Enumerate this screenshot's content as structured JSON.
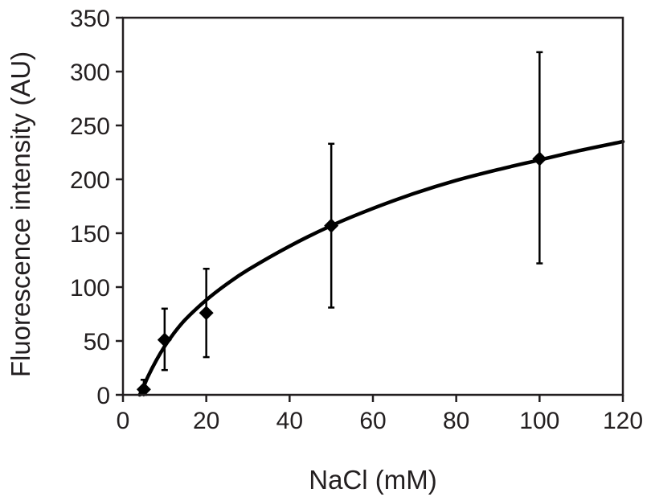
{
  "chart_data": {
    "type": "scatter",
    "title": "",
    "xlabel": "NaCl (mM)",
    "ylabel": "Fluorescence intensity (AU)",
    "xlim": [
      0,
      120
    ],
    "ylim": [
      0,
      350
    ],
    "x_ticks": [
      0,
      20,
      40,
      60,
      80,
      100,
      120
    ],
    "y_ticks": [
      0,
      50,
      100,
      150,
      200,
      250,
      300,
      350
    ],
    "x_tick_labels": [
      "0",
      "20",
      "40",
      "60",
      "80",
      "100",
      "120"
    ],
    "y_tick_labels": [
      "0",
      "50",
      "100",
      "150",
      "200",
      "250",
      "300",
      "350"
    ],
    "grid": false,
    "legend": "none",
    "marker": "diamond",
    "color": "#000000",
    "points": [
      {
        "x": 5,
        "y": 5,
        "err_low": 0,
        "err_high": 14
      },
      {
        "x": 10,
        "y": 51,
        "err_low": 23,
        "err_high": 80
      },
      {
        "x": 20,
        "y": 76,
        "err_low": 35,
        "err_high": 117
      },
      {
        "x": 50,
        "y": 157,
        "err_low": 81,
        "err_high": 233
      },
      {
        "x": 100,
        "y": 219,
        "err_low": 122,
        "err_high": 318
      }
    ],
    "fit_curve": {
      "x": [
        4,
        5,
        6,
        8,
        10,
        12,
        15,
        20,
        25,
        30,
        40,
        50,
        60,
        70,
        80,
        90,
        100,
        110,
        120
      ],
      "y": [
        0,
        8,
        17,
        32,
        45,
        56,
        70,
        88,
        103,
        116,
        138,
        157,
        173,
        187,
        199,
        209,
        218,
        227,
        235
      ]
    }
  }
}
